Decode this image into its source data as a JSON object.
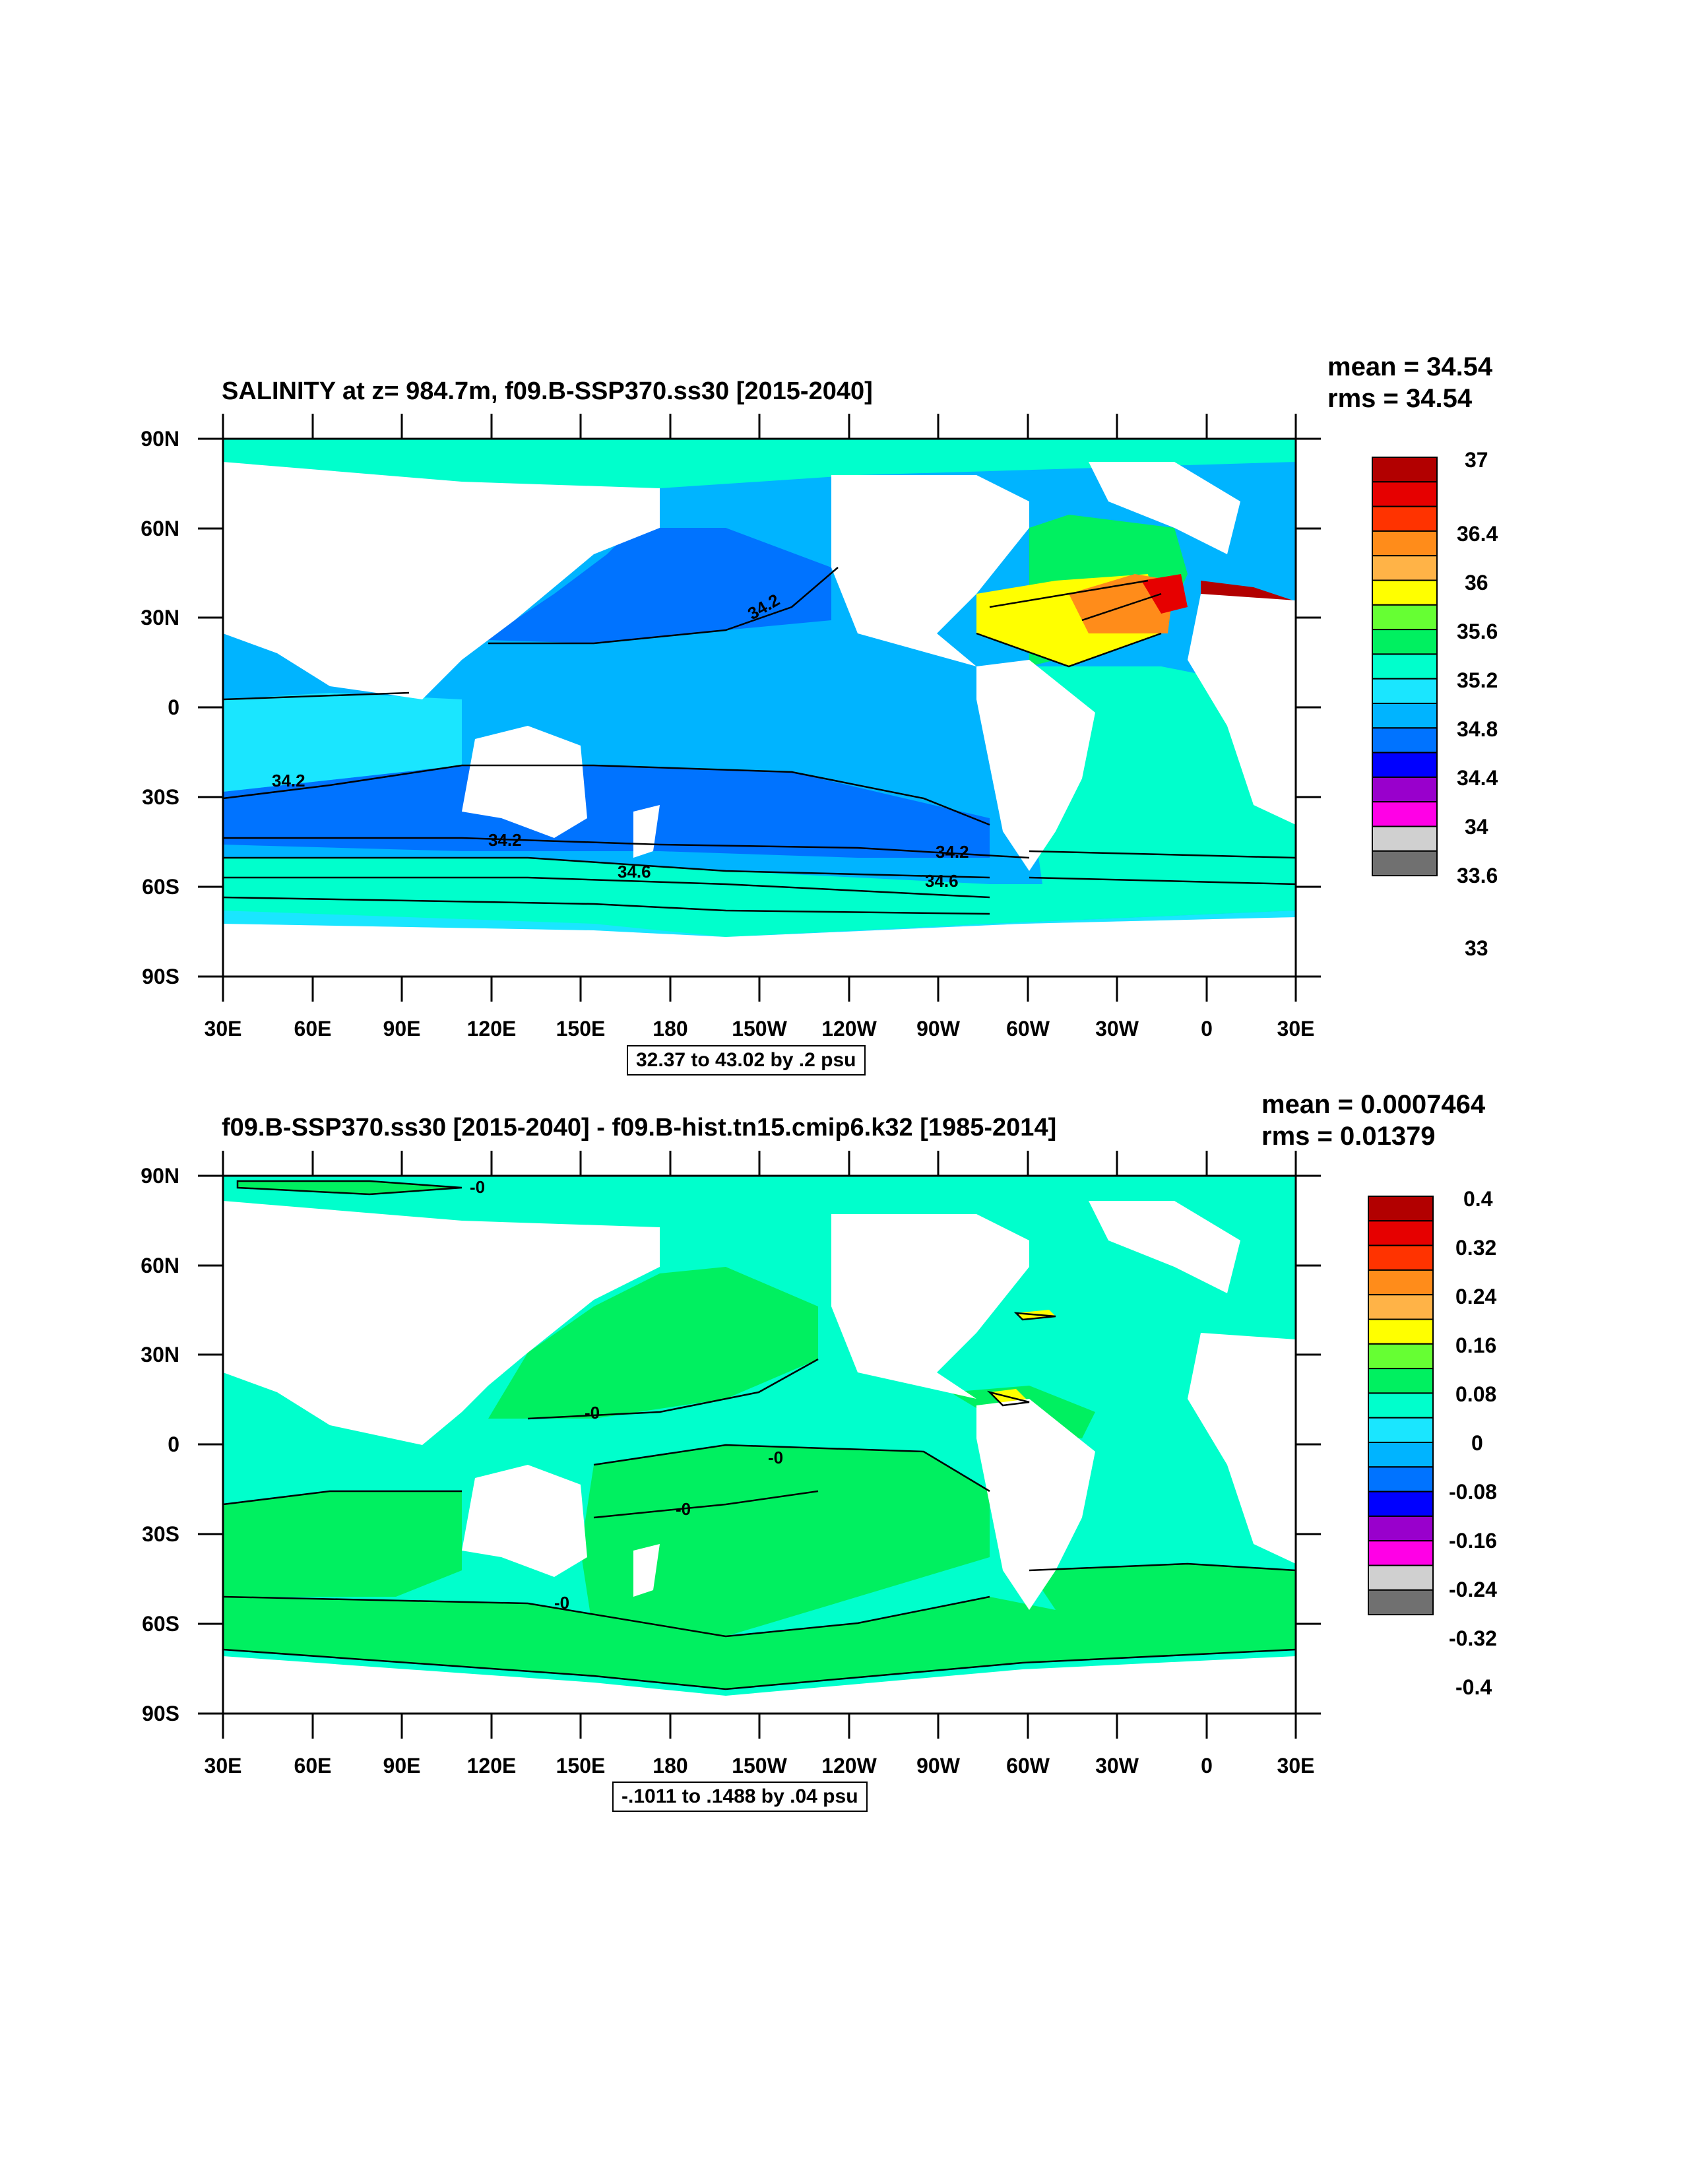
{
  "panels": [
    {
      "title": "SALINITY at z= 984.7m, f09.B-SSP370.ss30 [2015-2040]",
      "mean": "mean = 34.54",
      "rms": "rms = 34.54",
      "contour_info": "32.37 to 43.02 by .2 psu",
      "lat_labels": [
        "90N",
        "60N",
        "30N",
        "0",
        "30S",
        "60S",
        "90S"
      ],
      "lon_labels": [
        "30E",
        "60E",
        "90E",
        "120E",
        "150E",
        "180",
        "150W",
        "120W",
        "90W",
        "60W",
        "30W",
        "0",
        "30E"
      ],
      "colorbar": {
        "colors": [
          "#b20000",
          "#e60000",
          "#ff3300",
          "#ff8c1a",
          "#ffb347",
          "#ffff00",
          "#66ff33",
          "#00f060",
          "#00ffcc",
          "#1ae6ff",
          "#00b4ff",
          "#0073ff",
          "#0000ff",
          "#9900cc",
          "#ff00e6",
          "#d0d0d0",
          "#707070"
        ],
        "labels": [
          "37",
          "36.4",
          "36",
          "35.6",
          "35.2",
          "34.8",
          "34.4",
          "34",
          "33.6",
          "33"
        ]
      },
      "contour_labels": [
        "34.2",
        "34.2",
        "34.2",
        "34.2",
        "34.6",
        "34.6"
      ]
    },
    {
      "title": "f09.B-SSP370.ss30 [2015-2040] - f09.B-hist.tn15.cmip6.k32 [1985-2014]",
      "mean": "mean = 0.0007464",
      "rms": "rms = 0.01379",
      "contour_info": "-.1011 to .1488 by .04 psu",
      "lat_labels": [
        "90N",
        "60N",
        "30N",
        "0",
        "30S",
        "60S",
        "90S"
      ],
      "lon_labels": [
        "30E",
        "60E",
        "90E",
        "120E",
        "150E",
        "180",
        "150W",
        "120W",
        "90W",
        "60W",
        "30W",
        "0",
        "30E"
      ],
      "colorbar": {
        "colors": [
          "#b20000",
          "#e60000",
          "#ff3300",
          "#ff8c1a",
          "#ffb347",
          "#ffff00",
          "#66ff33",
          "#00f060",
          "#00ffcc",
          "#1ae6ff",
          "#00b4ff",
          "#0073ff",
          "#0000ff",
          "#9900cc",
          "#ff00e6",
          "#d0d0d0",
          "#707070"
        ],
        "labels": [
          "0.4",
          "0.32",
          "0.24",
          "0.16",
          "0.08",
          "0",
          "-0.08",
          "-0.16",
          "-0.24",
          "-0.32",
          "-0.4"
        ]
      },
      "contour_labels": [
        "-0",
        "-0",
        "-0",
        "-0",
        "-0"
      ]
    }
  ],
  "colors": {
    "pacific_top": "#00b4ff",
    "north_pacific_top": "#0073ff",
    "southern_top": "#0073ff",
    "atlantic_top": "#00ffcc",
    "arctic_top": "#00ffcc",
    "ocean_green": "#00f060",
    "ocean_cyan": "#00ffcc",
    "land": "#ffffff"
  }
}
